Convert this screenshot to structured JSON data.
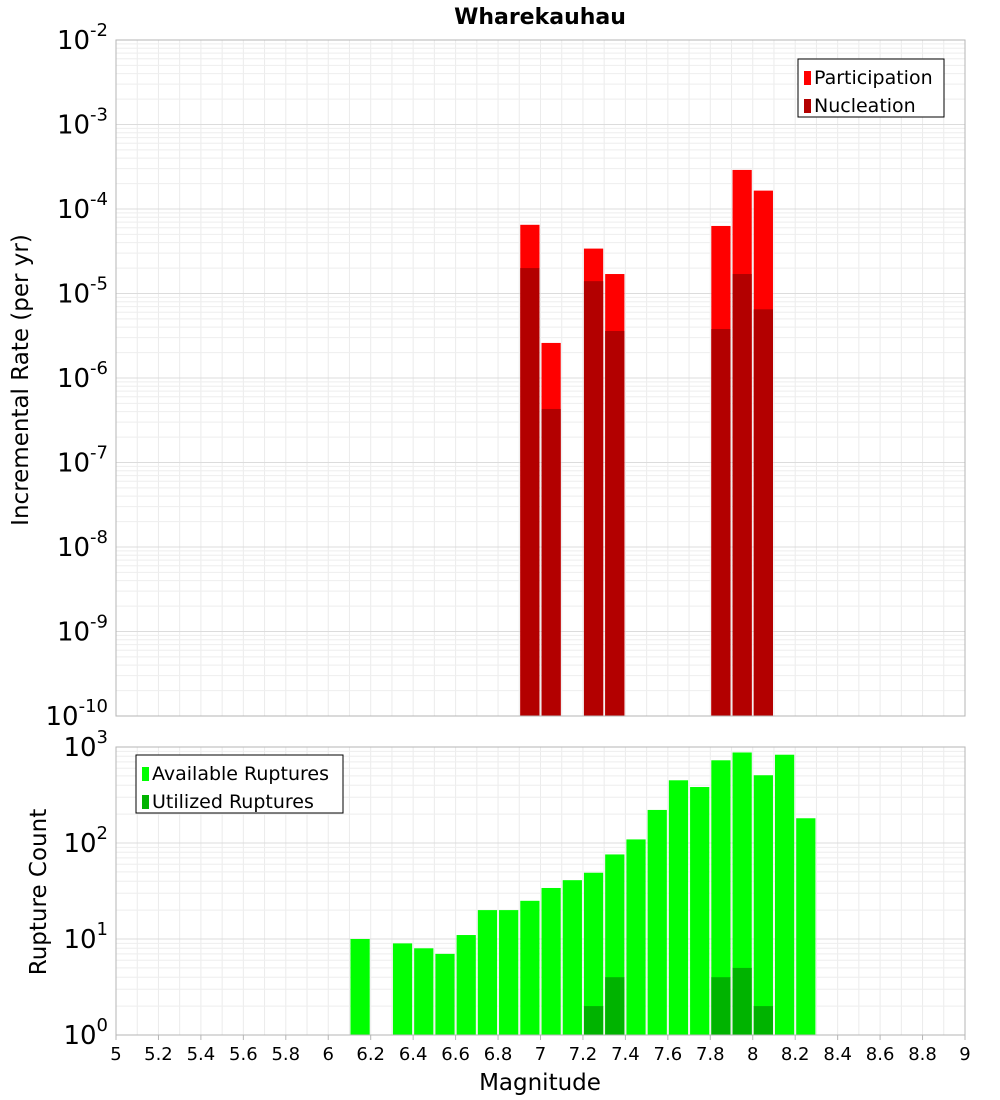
{
  "chart_data": [
    {
      "type": "bar",
      "title": "Wharekauhau",
      "xlabel": "",
      "ylabel": "Incremental Rate (per yr)",
      "yscale": "log",
      "ylim_exp": [
        -10,
        -2
      ],
      "grid": true,
      "legend_placement": "top-right",
      "x": [
        6.95,
        7.05,
        7.25,
        7.35,
        7.85,
        7.95,
        8.05
      ],
      "series": [
        {
          "name": "Participation",
          "color": "#ff0000",
          "values": [
            6.5e-05,
            2.6e-06,
            3.4e-05,
            1.7e-05,
            6.3e-05,
            0.00029,
            0.000165
          ]
        },
        {
          "name": "Nucleation",
          "color": "#b30000",
          "values": [
            2e-05,
            4.3e-07,
            1.4e-05,
            3.6e-06,
            3.8e-06,
            1.7e-05,
            6.5e-06
          ]
        }
      ]
    },
    {
      "type": "bar",
      "xlabel": "Magnitude",
      "ylabel": "Rupture Count",
      "yscale": "log",
      "ylim_exp": [
        0,
        3
      ],
      "xlim": [
        5,
        9
      ],
      "grid": true,
      "legend_placement": "top-left",
      "x": [
        6.15,
        6.35,
        6.45,
        6.55,
        6.65,
        6.75,
        6.85,
        6.95,
        7.05,
        7.15,
        7.25,
        7.35,
        7.45,
        7.55,
        7.65,
        7.75,
        7.85,
        7.95,
        8.05,
        8.15,
        8.25
      ],
      "series": [
        {
          "name": "Available Ruptures",
          "color": "#00ff00",
          "values": [
            10,
            9,
            8,
            7,
            11,
            20,
            20,
            25,
            34,
            41,
            49,
            76,
            109,
            221,
            450,
            383,
            727,
            877,
            508,
            831,
            181
          ]
        },
        {
          "name": "Utilized Ruptures",
          "color": "#00b300",
          "values": [
            0,
            0,
            0,
            0,
            0,
            0,
            0,
            1,
            1,
            0,
            2,
            4,
            0,
            0,
            0,
            0,
            4,
            5,
            2,
            0,
            0
          ]
        }
      ],
      "xticks": [
        5,
        5.2,
        5.4,
        5.6,
        5.8,
        6,
        6.2,
        6.4,
        6.6,
        6.8,
        7,
        7.2,
        7.4,
        7.6,
        7.8,
        8,
        8.2,
        8.4,
        8.6,
        8.8,
        9
      ]
    }
  ]
}
